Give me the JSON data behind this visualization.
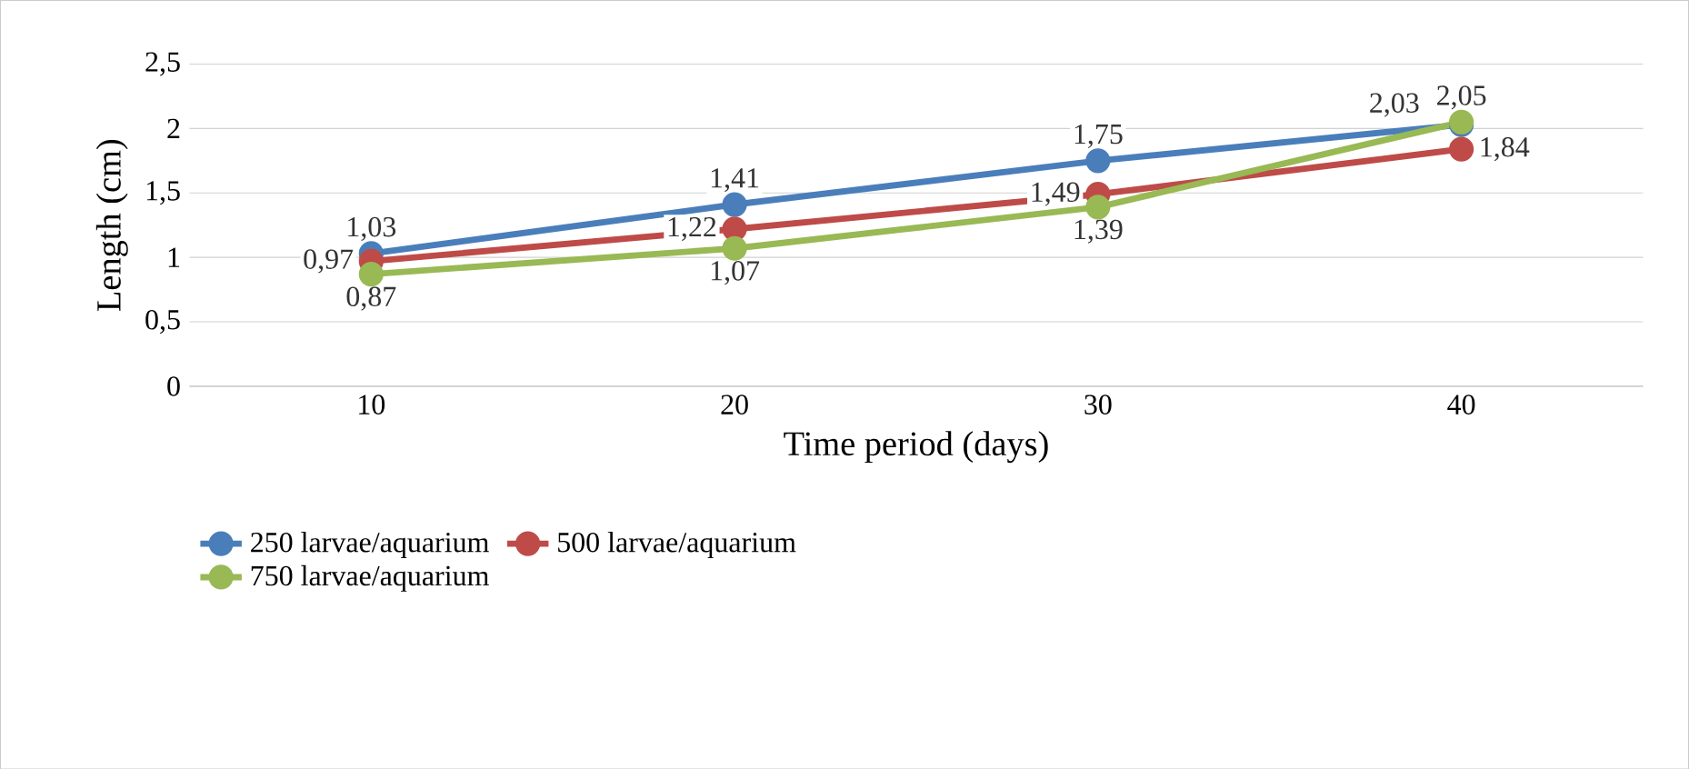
{
  "chart_data": {
    "type": "line",
    "xlabel": "Time period (days)",
    "ylabel": "Length (cm)",
    "categories": [
      "10",
      "20",
      "30",
      "40"
    ],
    "series": [
      {
        "name": "250 larvae/aquarium",
        "color": "#4a7ebb",
        "values": [
          1.03,
          1.41,
          1.75,
          2.03
        ],
        "value_labels": [
          "1,03",
          "1,41",
          "1,75",
          "2,03"
        ]
      },
      {
        "name": "500 larvae/aquarium",
        "color": "#be4b48",
        "values": [
          0.97,
          1.22,
          1.49,
          1.84
        ],
        "value_labels": [
          "0,97",
          "1,22",
          "1,49",
          "1,84"
        ]
      },
      {
        "name": "750 larvae/aquarium",
        "color": "#98b954",
        "values": [
          0.87,
          1.07,
          1.39,
          2.05
        ],
        "value_labels": [
          "0,87",
          "1,07",
          "1,39",
          "2,05"
        ]
      }
    ],
    "ylim": [
      0,
      2.5
    ],
    "yticks": [
      {
        "value": 0,
        "label": "0"
      },
      {
        "value": 0.5,
        "label": "0,5"
      },
      {
        "value": 1,
        "label": "1"
      },
      {
        "value": 1.5,
        "label": "1,5"
      },
      {
        "value": 2,
        "label": "2"
      },
      {
        "value": 2.5,
        "label": "2,5"
      }
    ],
    "grid": "y",
    "legend": "bottom",
    "marker": "circle",
    "line_style": "solid"
  }
}
